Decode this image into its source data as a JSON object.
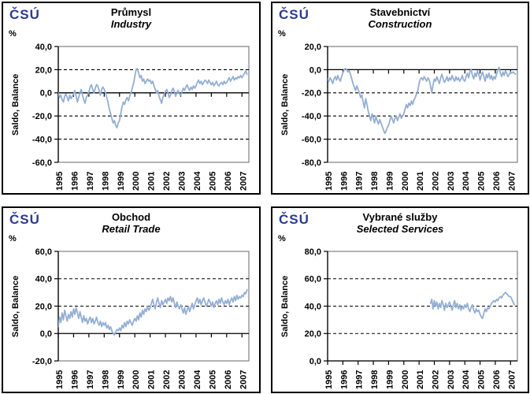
{
  "logo_text": "ČSÚ",
  "theme": {
    "line_color": "#94AFD3",
    "logo_color": "#2B3A8F",
    "grid_color": "#000000",
    "plot_border_color": "#808080",
    "axis_color": "#000000",
    "panel_border_color": "#000000"
  },
  "charts": [
    {
      "id": "industry",
      "title_cs": "Průmysl",
      "title_en": "Industry",
      "unit": "%",
      "ylabel": "Saldo, Balance",
      "chart_data": {
        "type": "line",
        "title": "Průmysl / Industry",
        "xlabel": "",
        "ylabel": "Saldo, Balance",
        "ylim": [
          -60,
          40
        ],
        "yticks": [
          40,
          20,
          0,
          -20,
          -40,
          -60
        ],
        "xlim": [
          1995,
          2007.45
        ],
        "xticks": [
          1995,
          1996,
          1997,
          1998,
          1999,
          2000,
          2001,
          2002,
          2003,
          2004,
          2005,
          2006,
          2007
        ],
        "grid": "dashed-horizontal",
        "legend": "none",
        "series": [
          {
            "name": "Saldo, Balance",
            "start": 1995.0,
            "step_months": 1,
            "values": [
              0,
              -4,
              -2,
              -6,
              -8,
              -3,
              -1,
              -4,
              -7,
              -2,
              -5,
              -3,
              -1,
              2,
              -3,
              -8,
              -4,
              0,
              3,
              -2,
              -6,
              -9,
              -4,
              -2,
              1,
              5,
              7,
              3,
              0,
              4,
              7,
              6,
              2,
              -2,
              3,
              5,
              3,
              0,
              -4,
              -8,
              -14,
              -18,
              -22,
              -26,
              -24,
              -28,
              -30,
              -26,
              -24,
              -18,
              -12,
              -8,
              -10,
              -6,
              -4,
              -7,
              -3,
              0,
              4,
              8,
              14,
              20,
              21,
              17,
              13,
              15,
              10,
              12,
              8,
              10,
              12,
              10,
              11,
              8,
              10,
              6,
              3,
              0,
              2,
              -3,
              -6,
              -9,
              -4,
              -1,
              1,
              3,
              0,
              -4,
              -2,
              2,
              4,
              1,
              -3,
              0,
              2,
              -1,
              -2,
              1,
              4,
              2,
              5,
              7,
              4,
              2,
              5,
              3,
              6,
              4,
              6,
              9,
              11,
              8,
              10,
              7,
              9,
              11,
              10,
              8,
              11,
              9,
              7,
              9,
              6,
              8,
              10,
              7,
              6,
              8,
              9,
              7,
              10,
              8,
              9,
              11,
              13,
              10,
              12,
              14,
              11,
              13,
              12,
              14,
              13,
              15,
              13,
              15,
              17,
              19,
              16
            ]
          }
        ]
      }
    },
    {
      "id": "construction",
      "title_cs": "Stavebnictví",
      "title_en": "Construction",
      "unit": "%",
      "ylabel": "Saldo, Balance",
      "chart_data": {
        "type": "line",
        "title": "Stavebnictví / Construction",
        "xlabel": "",
        "ylabel": "Saldo, Balance",
        "ylim": [
          -80,
          20
        ],
        "yticks": [
          20,
          0,
          -20,
          -40,
          -60,
          -80
        ],
        "xlim": [
          1995,
          2007.45
        ],
        "xticks": [
          1995,
          1996,
          1997,
          1998,
          1999,
          2000,
          2001,
          2002,
          2003,
          2004,
          2005,
          2006,
          2007
        ],
        "grid": "dashed-horizontal",
        "legend": "none",
        "series": [
          {
            "name": "Saldo, Balance",
            "start": 1995.0,
            "step_months": 1,
            "values": [
              -8,
              -10,
              -7,
              -9,
              -12,
              -8,
              -6,
              -9,
              -5,
              -8,
              -10,
              -6,
              -3,
              0,
              1,
              0,
              -2,
              -1,
              -4,
              -8,
              -12,
              -15,
              -18,
              -14,
              -17,
              -20,
              -24,
              -22,
              -28,
              -33,
              -25,
              -30,
              -36,
              -40,
              -44,
              -38,
              -42,
              -46,
              -40,
              -44,
              -47,
              -43,
              -46,
              -49,
              -52,
              -55,
              -53,
              -50,
              -48,
              -44,
              -40,
              -43,
              -46,
              -42,
              -40,
              -44,
              -41,
              -38,
              -42,
              -40,
              -38,
              -34,
              -30,
              -33,
              -29,
              -31,
              -27,
              -30,
              -26,
              -24,
              -21,
              -18,
              -12,
              -8,
              -7,
              -9,
              -6,
              -8,
              -10,
              -7,
              -9,
              -14,
              -20,
              -13,
              -8,
              -10,
              -6,
              -9,
              -12,
              -7,
              -4,
              -8,
              -11,
              -9,
              -6,
              -10,
              -7,
              -9,
              -5,
              -8,
              -10,
              -6,
              -9,
              -7,
              -10,
              -8,
              -5,
              -9,
              -10,
              -6,
              -3,
              -7,
              -2,
              0,
              -5,
              -8,
              -3,
              -6,
              -1,
              -4,
              -9,
              -5,
              -2,
              -6,
              -10,
              -4,
              -7,
              -3,
              -8,
              -5,
              -9,
              -6,
              -8,
              -4,
              0,
              2,
              -3,
              -6,
              -2,
              -5,
              -1,
              -3,
              -6,
              -4,
              -2,
              -3,
              -2,
              -3,
              -4
            ]
          }
        ]
      }
    },
    {
      "id": "retail-trade",
      "title_cs": "Obchod",
      "title_en": "Retail Trade",
      "unit": "%",
      "ylabel": "Saldo, Balance",
      "chart_data": {
        "type": "line",
        "title": "Obchod / Retail Trade",
        "xlabel": "",
        "ylabel": "Saldo, Balance",
        "ylim": [
          -20,
          60
        ],
        "yticks": [
          60,
          40,
          20,
          0,
          -20
        ],
        "xlim": [
          1995,
          2007.45
        ],
        "xticks": [
          1995,
          1996,
          1997,
          1998,
          1999,
          2000,
          2001,
          2002,
          2003,
          2004,
          2005,
          2006,
          2007
        ],
        "grid": "dashed-horizontal",
        "legend": "none",
        "series": [
          {
            "name": "Saldo, Balance",
            "start": 1995.0,
            "step_months": 1,
            "values": [
              5,
              12,
              8,
              15,
              10,
              17,
              13,
              9,
              14,
              11,
              16,
              12,
              18,
              14,
              19,
              15,
              11,
              16,
              12,
              8,
              13,
              9,
              11,
              7,
              10,
              12,
              8,
              11,
              7,
              9,
              12,
              8,
              6,
              9,
              5,
              8,
              6,
              8,
              4,
              6,
              3,
              5,
              2,
              0,
              -1,
              1,
              3,
              2,
              4,
              2,
              6,
              4,
              8,
              5,
              9,
              7,
              10,
              8,
              6,
              9,
              11,
              9,
              13,
              10,
              15,
              12,
              17,
              14,
              18,
              16,
              20,
              17,
              19,
              22,
              25,
              21,
              18,
              23,
              26,
              22,
              19,
              24,
              21,
              23,
              25,
              22,
              26,
              24,
              27,
              23,
              26,
              22,
              19,
              23,
              20,
              18,
              21,
              18,
              15,
              19,
              14,
              17,
              20,
              16,
              19,
              22,
              18,
              21,
              24,
              26,
              22,
              25,
              21,
              24,
              26,
              23,
              20,
              22,
              25,
              23,
              20,
              23,
              19,
              22,
              24,
              21,
              25,
              22,
              26,
              23,
              21,
              24,
              22,
              25,
              21,
              24,
              26,
              23,
              27,
              24,
              28,
              25,
              27,
              26,
              28,
              27,
              30,
              29,
              32
            ]
          }
        ]
      }
    },
    {
      "id": "selected-services",
      "title_cs": "Vybrané služby",
      "title_en": "Selected Services",
      "unit": "%",
      "ylabel": "Saldo, Balance",
      "chart_data": {
        "type": "line",
        "title": "Vybrané služby / Selected Services",
        "xlabel": "",
        "ylabel": "Saldo, Balance",
        "ylim": [
          0,
          80
        ],
        "yticks": [
          80,
          60,
          40,
          20,
          0
        ],
        "xlim": [
          1995,
          2007.45
        ],
        "xticks": [
          1995,
          1996,
          1997,
          1998,
          1999,
          2000,
          2001,
          2002,
          2003,
          2004,
          2005,
          2006,
          2007
        ],
        "grid": "dashed-horizontal",
        "legend": "none",
        "series": [
          {
            "name": "Saldo, Balance",
            "start": 2001.75,
            "step_months": 1,
            "values": [
              42,
              45,
              38,
              44,
              40,
              43,
              38,
              42,
              39,
              44,
              41,
              37,
              42,
              39,
              41,
              43,
              40,
              37,
              41,
              44,
              39,
              42,
              38,
              41,
              37,
              40,
              38,
              41,
              39,
              42,
              38,
              36,
              39,
              41,
              37,
              35,
              38,
              36,
              37,
              34,
              32,
              31,
              35,
              38,
              36,
              39,
              38,
              40,
              42,
              43,
              44,
              43,
              45,
              44,
              46,
              47,
              46,
              48,
              49,
              50,
              49,
              48,
              47,
              47,
              45,
              43,
              41
            ]
          }
        ]
      }
    }
  ]
}
